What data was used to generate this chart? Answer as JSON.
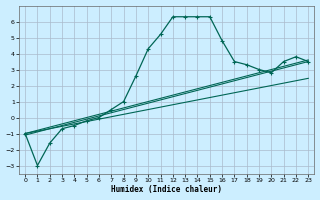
{
  "xlabel": "Humidex (Indice chaleur)",
  "background_color": "#cceeff",
  "grid_color": "#aabbcc",
  "line_color": "#006655",
  "xlim": [
    -0.5,
    23.5
  ],
  "ylim": [
    -3.5,
    7.0
  ],
  "yticks": [
    -3,
    -2,
    -1,
    0,
    1,
    2,
    3,
    4,
    5,
    6
  ],
  "xticks": [
    0,
    1,
    2,
    3,
    4,
    5,
    6,
    7,
    8,
    9,
    10,
    11,
    12,
    13,
    14,
    15,
    16,
    17,
    18,
    19,
    20,
    21,
    22,
    23
  ],
  "curve_x": [
    0,
    1,
    2,
    3,
    4,
    5,
    6,
    7,
    8,
    9,
    10,
    11,
    12,
    13,
    14,
    15,
    16,
    17,
    18,
    19,
    20,
    21,
    22,
    23
  ],
  "curve_y": [
    -1.0,
    -3.0,
    -1.6,
    -0.7,
    -0.5,
    -0.2,
    0.0,
    0.5,
    1.0,
    2.6,
    4.3,
    5.2,
    6.3,
    6.3,
    6.3,
    6.3,
    4.8,
    3.5,
    3.3,
    3.0,
    2.8,
    3.5,
    3.8,
    3.5
  ],
  "line1_x": [
    0,
    1,
    2,
    3,
    4,
    5,
    6,
    7,
    8,
    9,
    10,
    11,
    12,
    13,
    14,
    15,
    16,
    17,
    18,
    19,
    20,
    21,
    22,
    23
  ],
  "line1_y": [
    -1.0,
    -0.85,
    -0.7,
    -0.55,
    -0.4,
    -0.25,
    -0.1,
    0.05,
    0.2,
    0.35,
    0.5,
    0.65,
    0.8,
    0.95,
    1.1,
    1.25,
    1.4,
    1.55,
    1.7,
    1.85,
    2.0,
    2.15,
    2.3,
    2.45
  ],
  "line2_x": [
    0,
    1,
    2,
    3,
    4,
    5,
    6,
    7,
    8,
    9,
    10,
    11,
    12,
    13,
    14,
    15,
    16,
    17,
    18,
    19,
    20,
    21,
    22,
    23
  ],
  "line2_y": [
    -1.0,
    -0.8,
    -0.6,
    -0.4,
    -0.2,
    0.0,
    0.2,
    0.4,
    0.6,
    0.8,
    1.0,
    1.2,
    1.4,
    1.6,
    1.8,
    2.0,
    2.2,
    2.4,
    2.6,
    2.8,
    3.0,
    3.2,
    3.4,
    3.6
  ],
  "line3_x": [
    0,
    1,
    2,
    3,
    4,
    5,
    6,
    7,
    8,
    9,
    10,
    11,
    12,
    13,
    14,
    15,
    16,
    17,
    18,
    19,
    20,
    21,
    22,
    23
  ],
  "line3_y": [
    -1.1,
    -0.9,
    -0.7,
    -0.5,
    -0.3,
    -0.1,
    0.1,
    0.3,
    0.5,
    0.7,
    0.9,
    1.1,
    1.3,
    1.5,
    1.7,
    1.9,
    2.1,
    2.3,
    2.5,
    2.7,
    2.9,
    3.1,
    3.3,
    3.5
  ]
}
